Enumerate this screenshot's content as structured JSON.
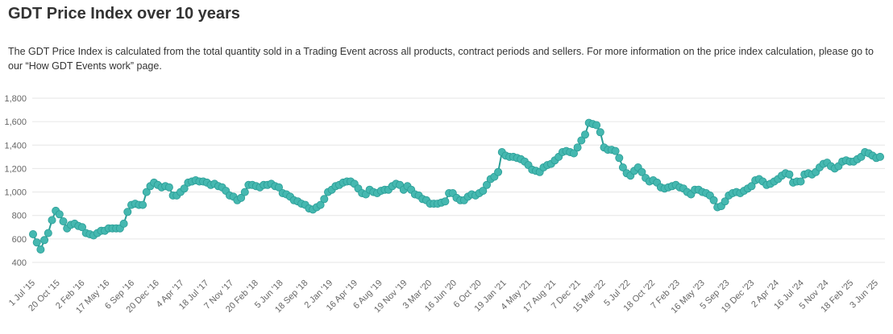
{
  "header": {
    "title": "GDT Price Index over 10 years",
    "description": "The GDT Price Index is calculated from the total quantity sold in a Trading Event across all products, contract periods and sellers. For more information on the price index calculation, please go to our “How GDT Events work” page."
  },
  "chart_data": {
    "type": "line",
    "title": "GDT Price Index over 10 years",
    "xlabel": "",
    "ylabel": "",
    "ylim": [
      400,
      1800
    ],
    "y_ticks": [
      "400",
      "600",
      "800",
      "1,000",
      "1,200",
      "1,400",
      "1,600",
      "1,800"
    ],
    "x_ticks": [
      "1 Jul '15",
      "20 Oct '15",
      "2 Feb '16",
      "17 May '16",
      "6 Sep '16",
      "20 Dec '16",
      "4 Apr '17",
      "18 Jul '17",
      "7 Nov '17",
      "20 Feb '18",
      "5 Jun '18",
      "18 Sep '18",
      "2 Jan '19",
      "16 Apr '19",
      "6 Aug '19",
      "19 Nov '19",
      "3 Mar '20",
      "16 Jun '20",
      "6 Oct '20",
      "19 Jan '21",
      "4 May '21",
      "17 Aug '21",
      "7 Dec '21",
      "15 Mar '22",
      "5 Jul '22",
      "18 Oct '22",
      "7 Feb '23",
      "16 May '23",
      "5 Sep '23",
      "19 Dec '23",
      "2 Apr '24",
      "16 Jul '24",
      "5 Nov '24",
      "18 Feb '25",
      "3 Jun '25"
    ],
    "grid": true,
    "legend": "none",
    "colors": {
      "line": "#2a9d96",
      "marker": "#45b8b0",
      "grid": "#e6e6e6"
    },
    "series": [
      {
        "values": [
          640,
          570,
          510,
          590,
          650,
          760,
          840,
          810,
          750,
          690,
          720,
          730,
          710,
          700,
          650,
          640,
          630,
          650,
          670,
          670,
          690,
          690,
          690,
          690,
          730,
          830,
          890,
          900,
          890,
          890,
          1000,
          1050,
          1080,
          1060,
          1040,
          1050,
          1040,
          970,
          970,
          1000,
          1030,
          1080,
          1090,
          1100,
          1090,
          1090,
          1080,
          1060,
          1070,
          1050,
          1040,
          1010,
          970,
          960,
          930,
          950,
          1000,
          1060,
          1060,
          1050,
          1040,
          1060,
          1060,
          1070,
          1050,
          1040,
          990,
          980,
          960,
          930,
          920,
          900,
          890,
          860,
          850,
          870,
          890,
          940,
          1000,
          1020,
          1050,
          1060,
          1080,
          1090,
          1090,
          1070,
          1030,
          990,
          980,
          1020,
          1000,
          990,
          1010,
          1020,
          1020,
          1050,
          1070,
          1060,
          1020,
          1050,
          1020,
          980,
          970,
          940,
          930,
          900,
          900,
          900,
          910,
          920,
          990,
          990,
          950,
          930,
          930,
          960,
          980,
          970,
          990,
          1010,
          1060,
          1110,
          1130,
          1170,
          1340,
          1310,
          1300,
          1300,
          1290,
          1280,
          1260,
          1230,
          1190,
          1180,
          1170,
          1210,
          1230,
          1240,
          1270,
          1300,
          1340,
          1350,
          1340,
          1330,
          1380,
          1440,
          1490,
          1590,
          1580,
          1570,
          1510,
          1380,
          1360,
          1360,
          1350,
          1290,
          1210,
          1160,
          1140,
          1180,
          1210,
          1170,
          1120,
          1090,
          1100,
          1080,
          1040,
          1030,
          1040,
          1050,
          1060,
          1040,
          1030,
          1000,
          980,
          1020,
          1020,
          1000,
          990,
          970,
          930,
          870,
          880,
          920,
          970,
          990,
          1000,
          990,
          1010,
          1030,
          1050,
          1100,
          1110,
          1090,
          1060,
          1070,
          1090,
          1110,
          1140,
          1160,
          1150,
          1080,
          1090,
          1090,
          1150,
          1160,
          1150,
          1170,
          1210,
          1240,
          1250,
          1220,
          1200,
          1220,
          1260,
          1270,
          1260,
          1260,
          1280,
          1300,
          1340,
          1330,
          1310,
          1290,
          1300
        ]
      }
    ]
  }
}
